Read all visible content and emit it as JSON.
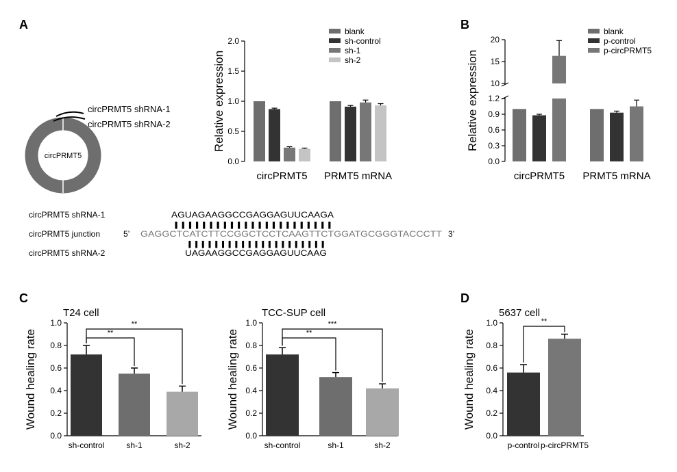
{
  "colors": {
    "dark": "#333333",
    "mid": "#6e6e6e",
    "light": "#a8a8a8",
    "lighter": "#c4c4c4",
    "gray": "#777777",
    "seqgray": "#777777"
  },
  "panels": {
    "A": "A",
    "B": "B",
    "C": "C",
    "D": "D"
  },
  "ring": {
    "center_label": "circPRMT5",
    "shrna1": "circPRMT5 shRNA-1",
    "shrna2": "circPRMT5 shRNA-2"
  },
  "sequence": {
    "row1_label": "circPRMT5 shRNA-1",
    "row1_seq": "AGUAGAAGGCCGAGGAGUUCAAGA",
    "row2_label": "circPRMT5 junction",
    "row2_prime5": "5’",
    "row2_seq": "GAGGCTCATCTTCCGGCTCCTCAAGTTCTGGATGCGGGTACCCTT",
    "row2_prime3": "3’",
    "row3_label": "circPRMT5 shRNA-2",
    "row3_seq": "UAGAAGGCCGAGGAGUUCAAG",
    "ticks1": "|||||||||||||||||||||||",
    "ticks2": "|||||||||||||||||||||"
  },
  "chart_data": [
    {
      "id": "A",
      "type": "bar",
      "ylabel": "Relative expression",
      "ylim": [
        0,
        2.0
      ],
      "yticks": [
        "0.0",
        "0.5",
        "1.0",
        "1.5",
        "2.0"
      ],
      "categories": [
        "circPRMT5",
        "PRMT5 mRNA"
      ],
      "series": [
        {
          "name": "blank",
          "values": [
            1.0,
            1.0
          ],
          "err": [
            0,
            0
          ]
        },
        {
          "name": "sh-control",
          "values": [
            0.87,
            0.91
          ],
          "err": [
            0.015,
            0.02
          ]
        },
        {
          "name": "sh-1",
          "values": [
            0.23,
            0.98
          ],
          "err": [
            0.015,
            0.04
          ]
        },
        {
          "name": "sh-2",
          "values": [
            0.21,
            0.93
          ],
          "err": [
            0.012,
            0.03
          ]
        }
      ],
      "legend": "top-right"
    },
    {
      "id": "B",
      "type": "bar",
      "ylabel": "Relative expression",
      "yticks_lower": [
        "0.0",
        "0.3",
        "0.6",
        "0.9",
        "1.2"
      ],
      "yticks_upper": [
        "10",
        "15",
        "20"
      ],
      "categories": [
        "circPRMT5",
        "PRMT5 mRNA"
      ],
      "series": [
        {
          "name": "blank",
          "values": [
            1.0,
            1.0
          ],
          "err": [
            0,
            0
          ]
        },
        {
          "name": "p-control",
          "values": [
            0.88,
            0.93
          ],
          "err": [
            0.02,
            0.03
          ]
        },
        {
          "name": "p-circPRMT5",
          "values": [
            16.3,
            1.05
          ],
          "err": [
            3.5,
            0.12
          ]
        }
      ],
      "legend": "top-right"
    },
    {
      "id": "C1",
      "type": "bar",
      "title": "T24 cell",
      "ylabel": "Wound healing rate",
      "ylim": [
        0,
        1.0
      ],
      "yticks": [
        "0.0",
        "0.2",
        "0.4",
        "0.6",
        "0.8",
        "1.0"
      ],
      "categories": [
        "sh-control",
        "sh-1",
        "sh-2"
      ],
      "values": [
        0.72,
        0.55,
        0.39
      ],
      "err": [
        0.08,
        0.05,
        0.05
      ],
      "sig": [
        {
          "from": 0,
          "to": 1,
          "label": "**"
        },
        {
          "from": 0,
          "to": 2,
          "label": "**"
        }
      ]
    },
    {
      "id": "C2",
      "type": "bar",
      "title": "TCC-SUP cell",
      "ylabel": "Wound healing rate",
      "ylim": [
        0,
        1.0
      ],
      "yticks": [
        "0.0",
        "0.2",
        "0.4",
        "0.6",
        "0.8",
        "1.0"
      ],
      "categories": [
        "sh-control",
        "sh-1",
        "sh-2"
      ],
      "values": [
        0.72,
        0.52,
        0.42
      ],
      "err": [
        0.06,
        0.04,
        0.04
      ],
      "sig": [
        {
          "from": 0,
          "to": 1,
          "label": "**"
        },
        {
          "from": 0,
          "to": 2,
          "label": "***"
        }
      ]
    },
    {
      "id": "D",
      "type": "bar",
      "title": "5637 cell",
      "ylabel": "Wound healing rate",
      "ylim": [
        0,
        1.0
      ],
      "yticks": [
        "0.0",
        "0.2",
        "0.4",
        "0.6",
        "0.8",
        "1.0"
      ],
      "categories": [
        "p-control",
        "p-circPRMT5"
      ],
      "values": [
        0.56,
        0.86
      ],
      "err": [
        0.07,
        0.04
      ],
      "sig": [
        {
          "from": 0,
          "to": 1,
          "label": "**"
        }
      ]
    }
  ]
}
